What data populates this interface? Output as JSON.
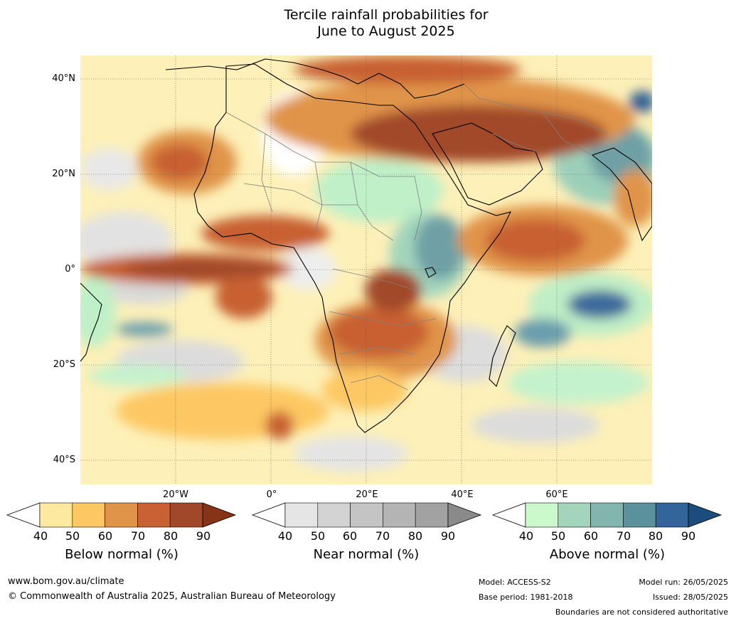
{
  "title": {
    "line1": "Tercile rainfall probabilities for",
    "line2": "June to August 2025"
  },
  "map": {
    "lat_labels": [
      "40°N",
      "20°N",
      "0°",
      "20°S",
      "40°S"
    ],
    "lon_labels": [
      "20°W",
      "0°",
      "20°E",
      "40°E",
      "60°E"
    ]
  },
  "legends": [
    {
      "title": "Below normal (%)",
      "ticks": [
        "40",
        "50",
        "60",
        "70",
        "80",
        "90"
      ],
      "colors": [
        "#ffffff",
        "#fdeaa0",
        "#fdc863",
        "#e0944a",
        "#c86133",
        "#a2482a",
        "#873318"
      ]
    },
    {
      "title": "Near normal (%)",
      "ticks": [
        "40",
        "50",
        "60",
        "70",
        "80",
        "90"
      ],
      "colors": [
        "#ffffff",
        "#e5e5e5",
        "#d3d3d3",
        "#c4c4c4",
        "#b4b4b4",
        "#a2a2a2",
        "#8a8a8a"
      ]
    },
    {
      "title": "Above normal (%)",
      "ticks": [
        "40",
        "50",
        "60",
        "70",
        "80",
        "90"
      ],
      "colors": [
        "#ffffff",
        "#ccf9cc",
        "#a3d5bc",
        "#82b5ad",
        "#5b909d",
        "#33659a",
        "#1c4c7e"
      ]
    }
  ],
  "footer": {
    "website": "www.bom.gov.au/climate",
    "copyright": "© Commonwealth of Australia 2025, Australian Bureau of Meteorology",
    "model": "Model: ACCESS-S2",
    "base_period": "Base period: 1981-2018",
    "model_run": "Model run: 26/05/2025",
    "issued": "Issued: 28/05/2025",
    "disclaimer": "Boundaries are not considered authoritative"
  }
}
